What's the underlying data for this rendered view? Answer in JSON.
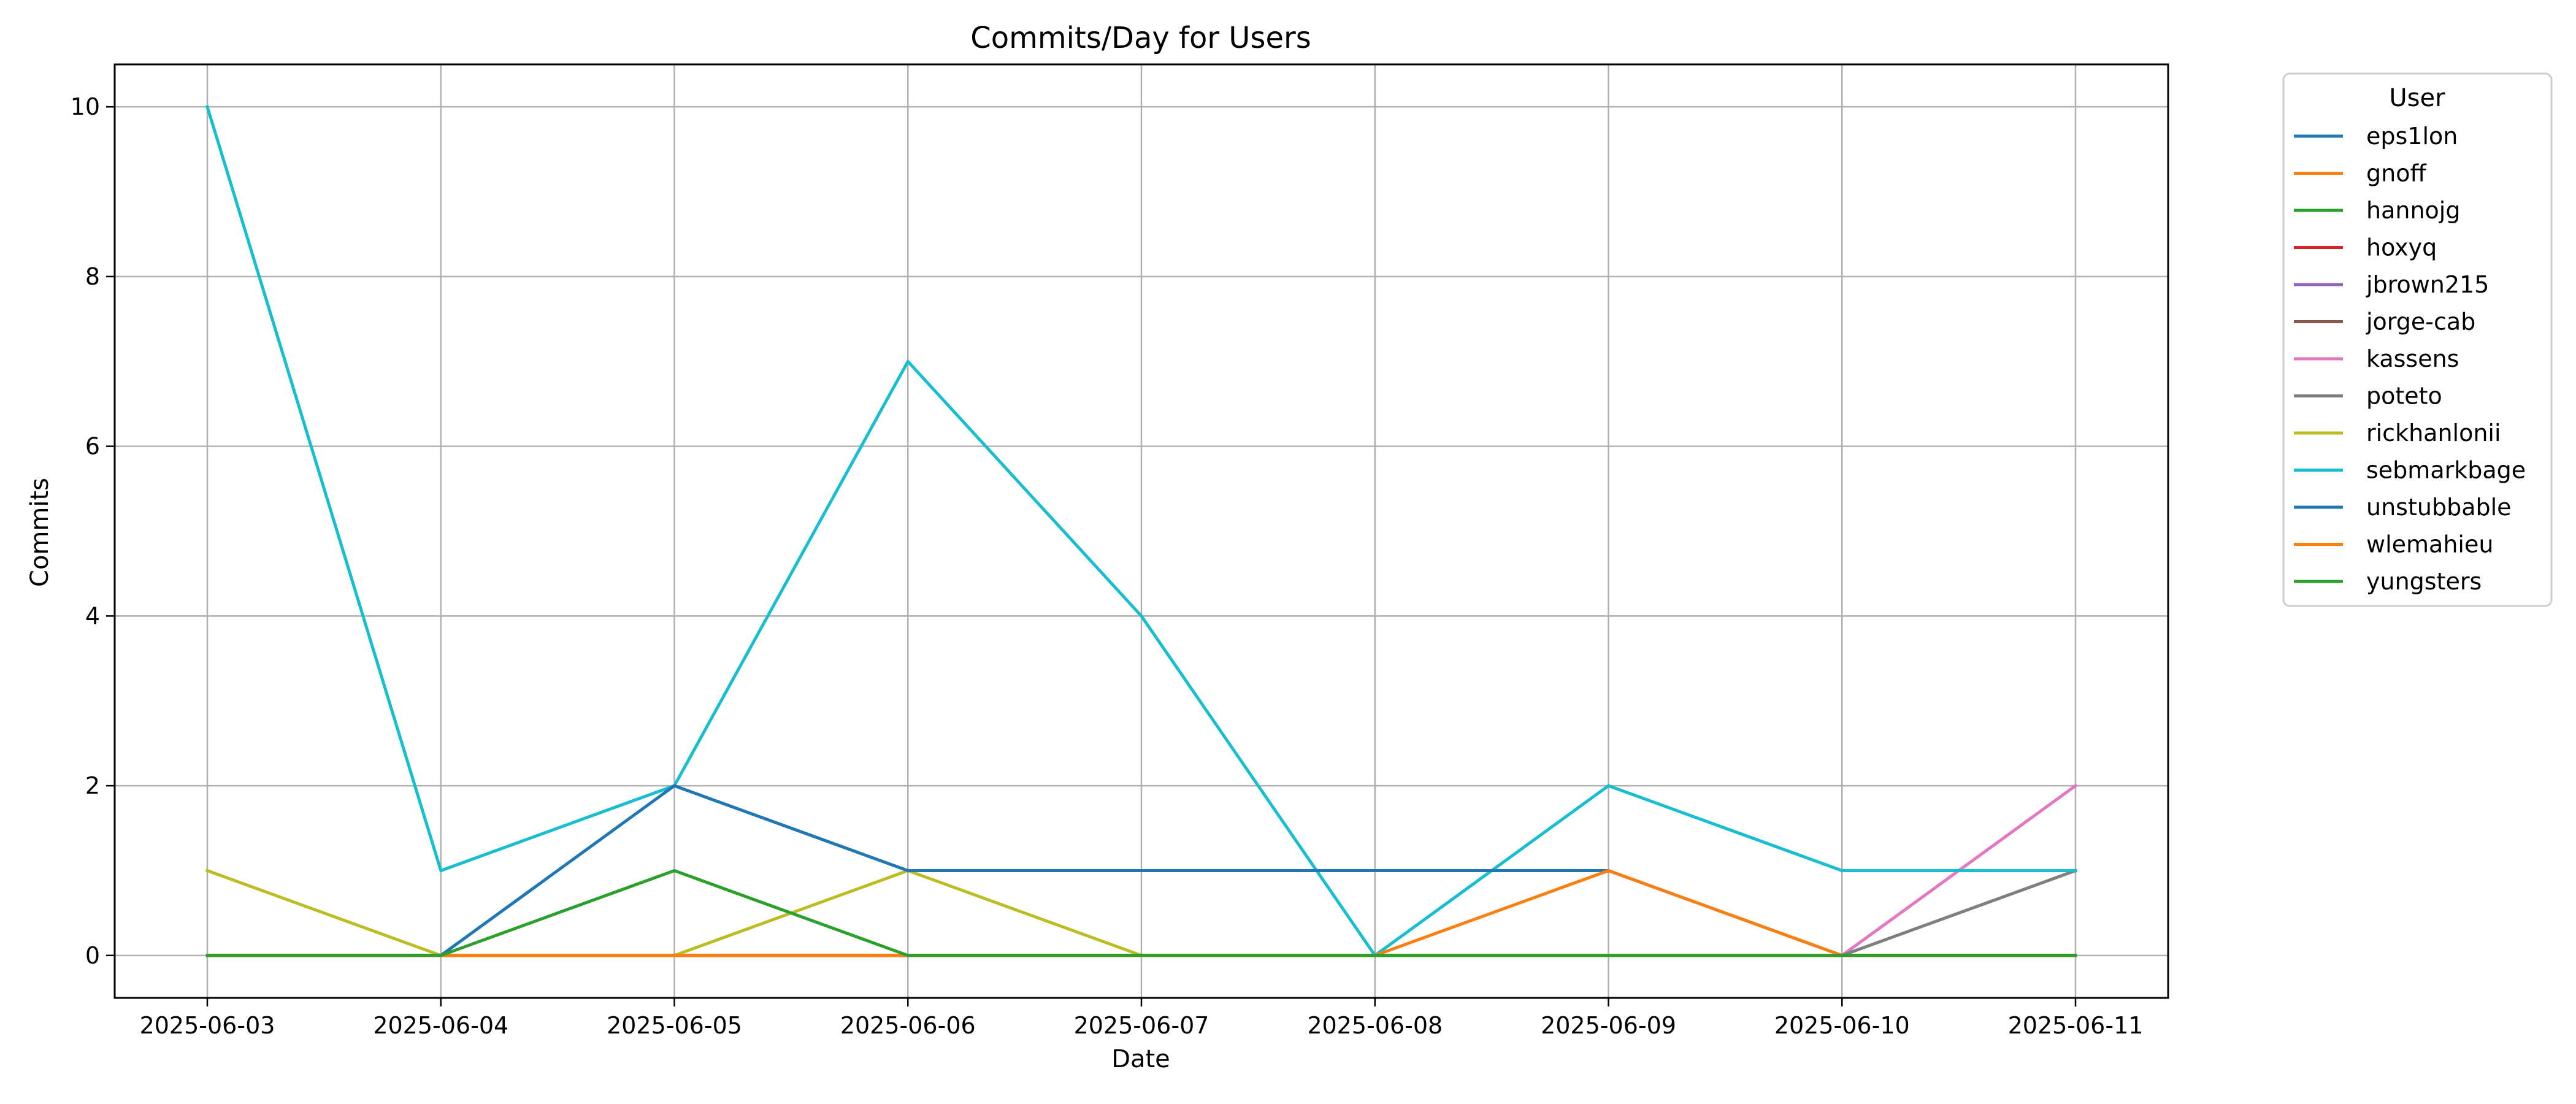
{
  "chart_data": {
    "type": "line",
    "title": "Commits/Day for Users",
    "xlabel": "Date",
    "ylabel": "Commits",
    "x": [
      "2025-06-03",
      "2025-06-04",
      "2025-06-05",
      "2025-06-06",
      "2025-06-07",
      "2025-06-08",
      "2025-06-09",
      "2025-06-10",
      "2025-06-11"
    ],
    "ylim": [
      -0.5,
      10.5
    ],
    "yticks": [
      0,
      2,
      4,
      6,
      8,
      10
    ],
    "grid": true,
    "legend": {
      "title": "User",
      "placement": "outside-right"
    },
    "series": [
      {
        "name": "eps1lon",
        "color": "#1f77b4",
        "values": [
          0,
          0,
          0,
          0,
          0,
          0,
          0,
          0,
          0
        ]
      },
      {
        "name": "gnoff",
        "color": "#ff7f0e",
        "values": [
          0,
          0,
          0,
          0,
          0,
          0,
          0,
          0,
          0
        ]
      },
      {
        "name": "hannojg",
        "color": "#2ca02c",
        "values": [
          0,
          0,
          0,
          0,
          0,
          0,
          0,
          0,
          0
        ]
      },
      {
        "name": "hoxyq",
        "color": "#d62728",
        "values": [
          0,
          0,
          0,
          0,
          0,
          0,
          0,
          0,
          0
        ]
      },
      {
        "name": "jbrown215",
        "color": "#9467bd",
        "values": [
          0,
          0,
          0,
          0,
          0,
          0,
          0,
          0,
          0
        ]
      },
      {
        "name": "jorge-cab",
        "color": "#8c564b",
        "values": [
          0,
          0,
          0,
          0,
          0,
          0,
          0,
          0,
          0
        ]
      },
      {
        "name": "kassens",
        "color": "#e377c2",
        "values": [
          0,
          0,
          0,
          0,
          0,
          0,
          0,
          0,
          2
        ]
      },
      {
        "name": "poteto",
        "color": "#7f7f7f",
        "values": [
          0,
          0,
          0,
          0,
          0,
          0,
          0,
          0,
          1
        ]
      },
      {
        "name": "rickhanlonii",
        "color": "#bcbd22",
        "values": [
          1,
          0,
          0,
          1,
          0,
          0,
          0,
          0,
          0
        ]
      },
      {
        "name": "sebmarkbage",
        "color": "#17becf",
        "values": [
          10,
          1,
          2,
          7,
          4,
          0,
          2,
          1,
          1
        ]
      },
      {
        "name": "unstubbable",
        "color": "#1f77b4",
        "values": [
          0,
          0,
          2,
          1,
          1,
          1,
          1,
          0,
          0
        ]
      },
      {
        "name": "wlemahieu",
        "color": "#ff7f0e",
        "values": [
          0,
          0,
          0,
          0,
          0,
          0,
          1,
          0,
          0
        ]
      },
      {
        "name": "yungsters",
        "color": "#2ca02c",
        "values": [
          0,
          0,
          1,
          0,
          0,
          0,
          0,
          0,
          0
        ]
      }
    ]
  }
}
